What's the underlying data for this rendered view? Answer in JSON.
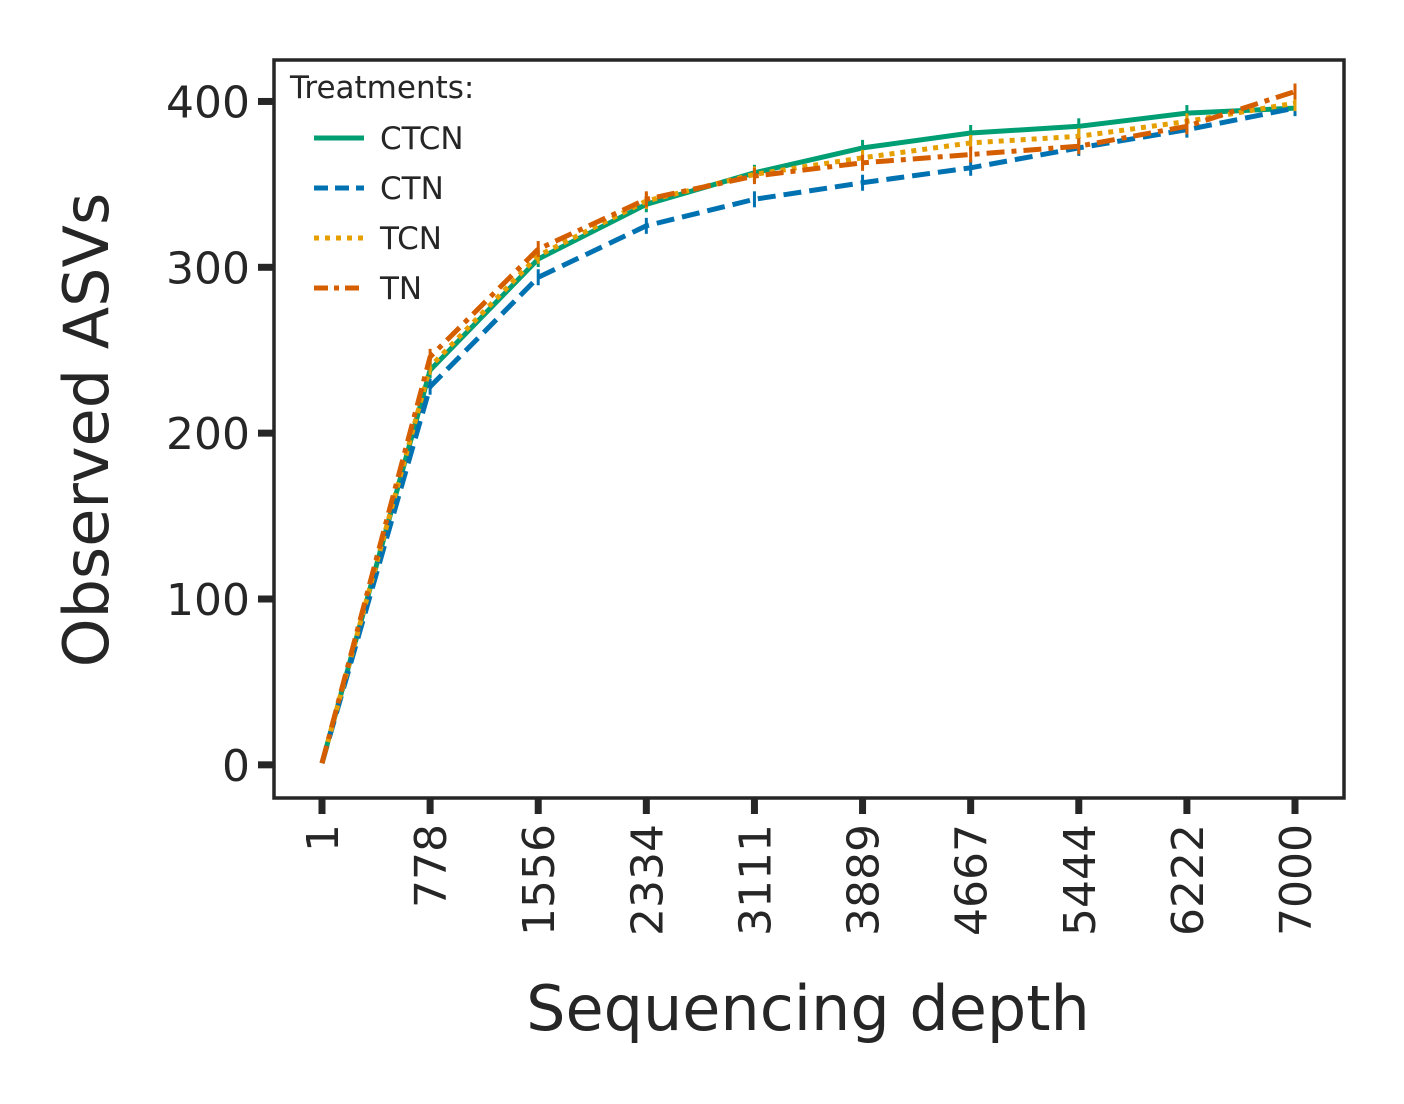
{
  "chart_data": {
    "type": "line",
    "title": "",
    "xlabel": "Sequencing depth",
    "ylabel": "Observed ASVs",
    "x": [
      "1",
      "778",
      "1556",
      "2334",
      "3111",
      "3889",
      "4667",
      "5444",
      "6222",
      "7000"
    ],
    "ylim": [
      -20,
      425
    ],
    "yticks": [
      0,
      100,
      200,
      300,
      400
    ],
    "grid": false,
    "legend": {
      "title": "Treatments:",
      "placement": "top-left"
    },
    "series": [
      {
        "name": "CTCN",
        "color": "#009E73",
        "dash": "solid",
        "values": [
          1,
          238,
          305,
          338,
          357,
          372,
          381,
          385,
          393,
          396
        ]
      },
      {
        "name": "CTN",
        "color": "#0072B2",
        "dash": "dashed",
        "values": [
          1,
          228,
          294,
          325,
          341,
          351,
          360,
          372,
          383,
          396
        ]
      },
      {
        "name": "TCN",
        "color": "#E69F00",
        "dash": "dotted",
        "values": [
          1,
          240,
          307,
          340,
          356,
          366,
          375,
          379,
          388,
          399
        ]
      },
      {
        "name": "TN",
        "color": "#D55E00",
        "dash": "dashdot",
        "values": [
          1,
          246,
          311,
          341,
          355,
          363,
          368,
          373,
          385,
          406
        ]
      }
    ]
  }
}
